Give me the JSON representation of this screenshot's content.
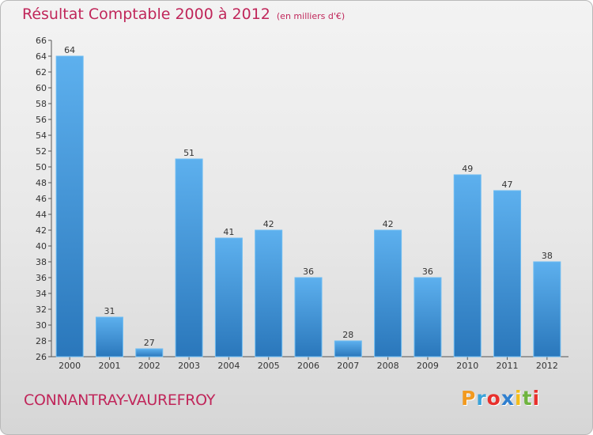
{
  "title": "Résultat Comptable 2000 à 2012",
  "subtitle": "(en milliers d'€)",
  "place": "CONNANTRAY-VAUREFROY",
  "logo": {
    "letters": [
      "P",
      "r",
      "o",
      "x",
      "i",
      "t",
      "i"
    ],
    "colors": [
      "#f29a1f",
      "#3aa3d9",
      "#e8302c",
      "#2f7fcf",
      "#f3bd1a",
      "#6fb43f",
      "#e8302c"
    ]
  },
  "colors": {
    "bar": "#4ea5e6",
    "bar_dark": "#2a77bb",
    "title": "#c0265a"
  },
  "chart_data": {
    "type": "bar",
    "categories": [
      "2000",
      "2001",
      "2002",
      "2003",
      "2004",
      "2005",
      "2006",
      "2007",
      "2008",
      "2009",
      "2010",
      "2011",
      "2012"
    ],
    "values": [
      64,
      31,
      27,
      51,
      41,
      42,
      36,
      28,
      42,
      36,
      49,
      47,
      38
    ],
    "ylim": [
      26,
      66
    ],
    "yticks": [
      26,
      28,
      30,
      32,
      34,
      36,
      38,
      40,
      42,
      44,
      46,
      48,
      50,
      52,
      54,
      56,
      58,
      60,
      62,
      64,
      66
    ],
    "grid": false,
    "legend": "none"
  }
}
